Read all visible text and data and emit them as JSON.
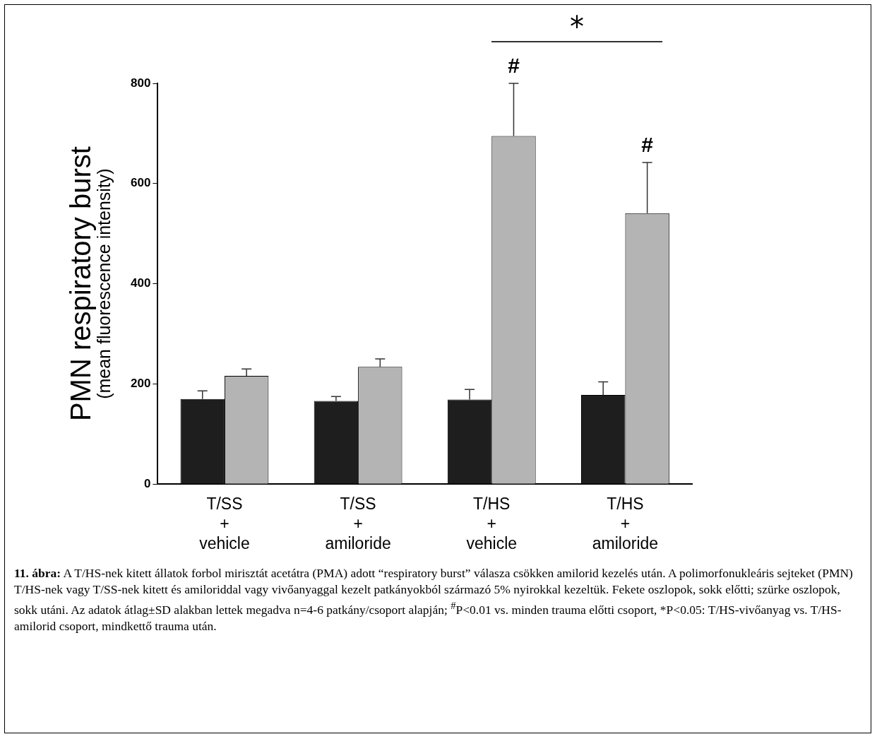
{
  "chart_data": {
    "type": "bar",
    "ylabel": "PMN respiratory burst\n(mean fluorescence intensity)",
    "categories": [
      "T/SS\n+\nvehicle",
      "T/SS\n+\namiloride",
      "T/HS\n+\nvehicle",
      "T/HS\n+\namiloride"
    ],
    "series": [
      {
        "color": "#1e1e1e",
        "values": [
          170,
          166,
          169,
          178
        ],
        "errors": [
          16,
          9,
          20,
          26
        ]
      },
      {
        "color": "#b4b4b4",
        "values": [
          216,
          234,
          695,
          541
        ],
        "errors": [
          14,
          16,
          105,
          101
        ]
      }
    ],
    "ylim": [
      0,
      800
    ],
    "yticks": [
      0,
      200,
      400,
      600,
      800
    ],
    "annotations": [
      "*",
      {
        "text": "#",
        "x": "T/HS\n+\nvehicle",
        "y": 695
      },
      {
        "text": "#",
        "x": "T/HS\n+\namiloride",
        "y": 541
      },
      "11. ábra:",
      "A T/HS-nek kitett állatok forbol mirisztát acetátra (PMA) adott “respiratory burst” válasza csökken amilorid kezelés után. A polimorfonukleáris sejteket (PMN) T/HS-nek vagy T/SS-nek kitett és amiloriddal vagy vivőanyaggal kezelt patkányokból származó 5% nyirokkal kezeltük. Fekete oszlopok, sokk előtti; szürke oszlopok, sokk utáni. Az adatok átlag±SD alakban lettek megadva n=4-6 patkány/csoport alapján; $^{#}$P<0.01 vs. minden trauma előtti csoport, *P<0.05: T/HS-vivőanyag vs. T/HS-amilorid csoport, mindkettő trauma után."
    ]
  }
}
